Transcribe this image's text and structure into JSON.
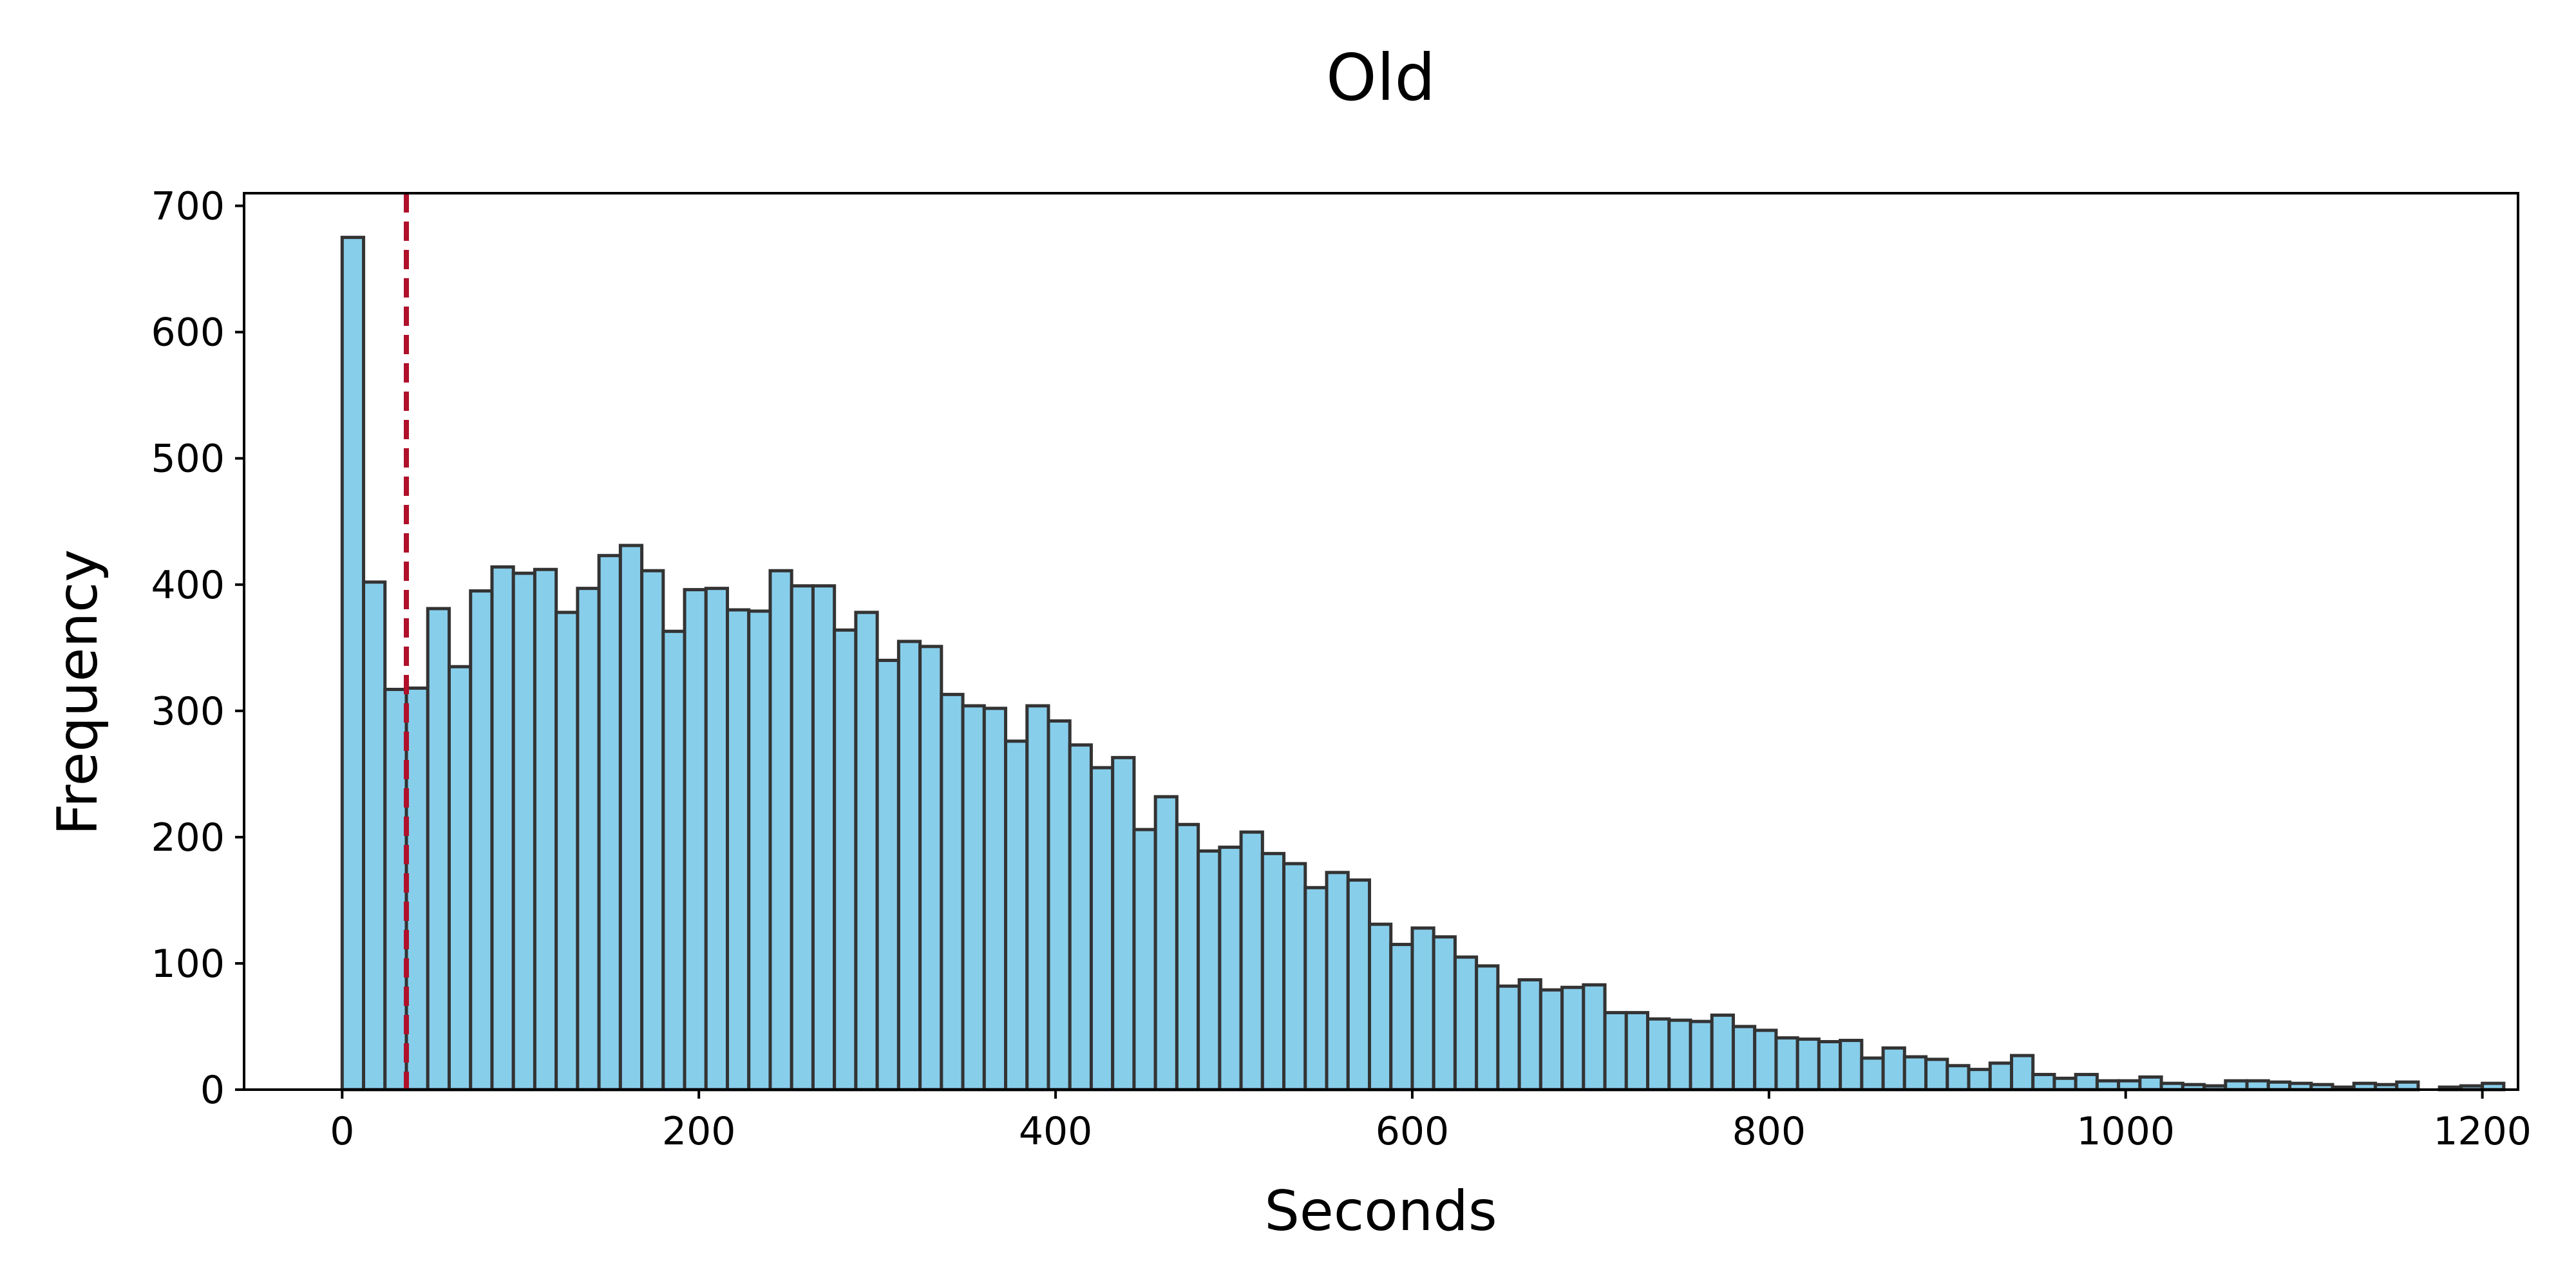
{
  "chart_data": {
    "type": "bar",
    "subtype": "histogram",
    "title": "Old",
    "xlabel": "Seconds",
    "ylabel": "Frequency",
    "xlim": [
      -55,
      1220
    ],
    "ylim": [
      0,
      710
    ],
    "xticks": [
      0,
      200,
      400,
      600,
      800,
      1000,
      1200
    ],
    "yticks": [
      0,
      100,
      200,
      300,
      400,
      500,
      600,
      700
    ],
    "grid": false,
    "bin_start": 0,
    "bin_width": 12,
    "values": [
      675,
      402,
      317,
      318,
      381,
      335,
      395,
      414,
      409,
      412,
      378,
      397,
      423,
      431,
      411,
      363,
      396,
      397,
      380,
      379,
      411,
      399,
      399,
      364,
      378,
      340,
      355,
      351,
      313,
      304,
      302,
      276,
      304,
      292,
      273,
      255,
      263,
      206,
      232,
      210,
      189,
      192,
      204,
      187,
      179,
      160,
      172,
      166,
      131,
      115,
      128,
      121,
      105,
      98,
      82,
      87,
      79,
      81,
      83,
      61,
      61,
      56,
      55,
      54,
      59,
      50,
      47,
      41,
      40,
      38,
      39,
      25,
      33,
      26,
      24,
      19,
      16,
      21,
      27,
      12,
      9,
      12,
      7,
      7,
      10,
      5,
      4,
      3,
      7,
      7,
      6,
      5,
      4,
      2,
      5,
      4,
      6,
      0,
      2,
      3,
      5
    ],
    "bar_fill": "#87CEEB",
    "bar_edge": "#333333",
    "marker_line": {
      "x": 36,
      "style": "dashed",
      "color": "#B0102A"
    }
  }
}
